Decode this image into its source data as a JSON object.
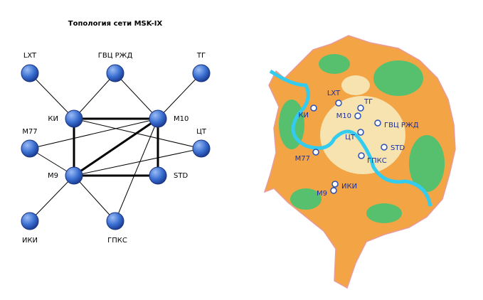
{
  "title": "Топология сети MSK-IX",
  "nodes": [
    {
      "label": "LXT"
    },
    {
      "label": "ГВЦ РЖД"
    },
    {
      "label": "ТГ"
    },
    {
      "label": "КИ"
    },
    {
      "label": "M10"
    },
    {
      "label": "M77"
    },
    {
      "label": "ЦТ"
    },
    {
      "label": "M9"
    },
    {
      "label": "STD"
    },
    {
      "label": "ИКИ"
    },
    {
      "label": "ГПКС"
    }
  ]
}
